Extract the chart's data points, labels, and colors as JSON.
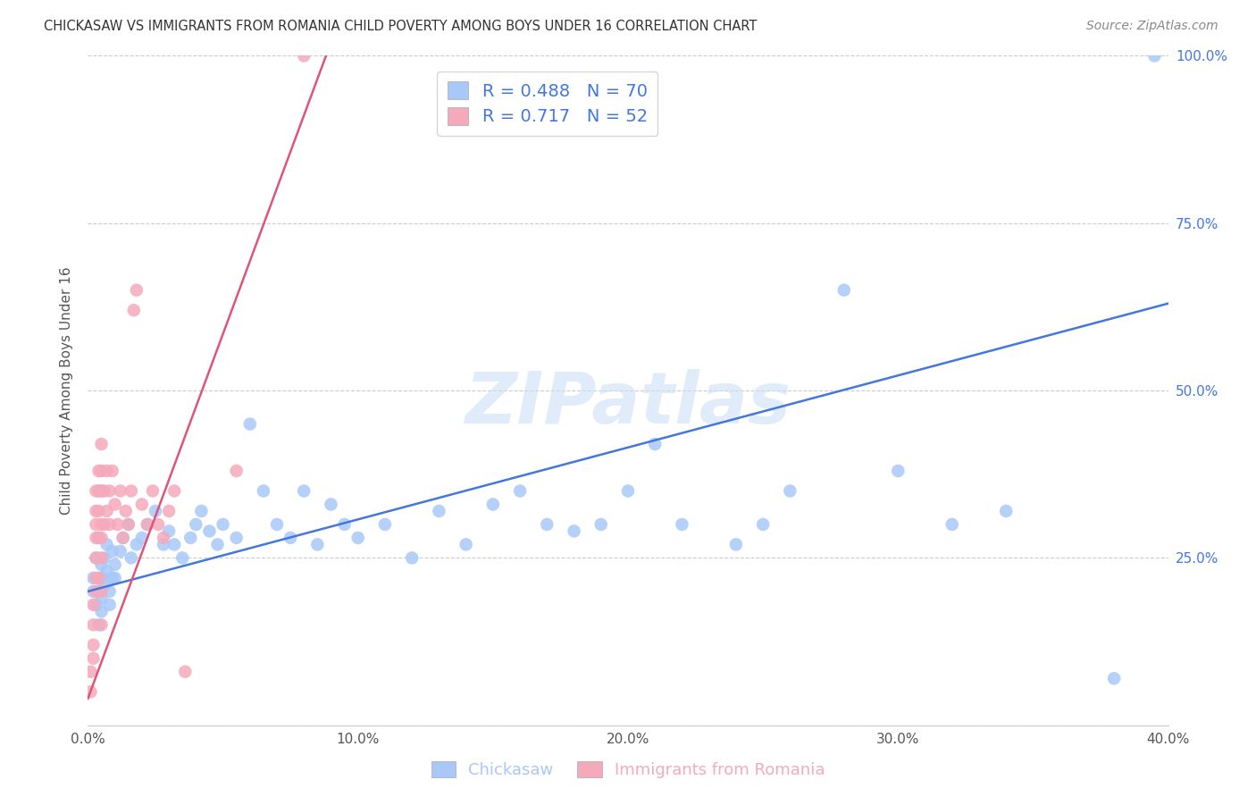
{
  "title": "CHICKASAW VS IMMIGRANTS FROM ROMANIA CHILD POVERTY AMONG BOYS UNDER 16 CORRELATION CHART",
  "source": "Source: ZipAtlas.com",
  "ylabel": "Child Poverty Among Boys Under 16",
  "xlim": [
    0.0,
    0.4
  ],
  "ylim": [
    0.0,
    1.0
  ],
  "xticks": [
    0.0,
    0.1,
    0.2,
    0.3,
    0.4
  ],
  "yticks": [
    0.0,
    0.25,
    0.5,
    0.75,
    1.0
  ],
  "xticklabels": [
    "0.0%",
    "10.0%",
    "20.0%",
    "30.0%",
    "40.0%"
  ],
  "yticklabels": [
    "",
    "25.0%",
    "50.0%",
    "75.0%",
    "100.0%"
  ],
  "legend1_label": "R = 0.488   N = 70",
  "legend2_label": "R = 0.717   N = 52",
  "blue_color": "#a8c8f8",
  "pink_color": "#f5aabb",
  "blue_line_color": "#4477dd",
  "pink_line_color": "#dd5577",
  "tick_color": "#4477dd",
  "watermark": "ZIPatlas",
  "chickasaw_x": [
    0.002,
    0.002,
    0.003,
    0.003,
    0.004,
    0.004,
    0.004,
    0.005,
    0.005,
    0.005,
    0.005,
    0.006,
    0.006,
    0.007,
    0.007,
    0.008,
    0.008,
    0.009,
    0.009,
    0.01,
    0.01,
    0.012,
    0.013,
    0.015,
    0.016,
    0.018,
    0.02,
    0.022,
    0.025,
    0.028,
    0.03,
    0.032,
    0.035,
    0.038,
    0.04,
    0.042,
    0.045,
    0.048,
    0.05,
    0.055,
    0.06,
    0.065,
    0.07,
    0.075,
    0.08,
    0.085,
    0.09,
    0.095,
    0.1,
    0.11,
    0.12,
    0.13,
    0.14,
    0.15,
    0.16,
    0.17,
    0.18,
    0.19,
    0.2,
    0.21,
    0.22,
    0.24,
    0.25,
    0.26,
    0.28,
    0.3,
    0.32,
    0.34,
    0.38,
    0.395
  ],
  "chickasaw_y": [
    0.2,
    0.22,
    0.18,
    0.25,
    0.15,
    0.2,
    0.28,
    0.22,
    0.17,
    0.24,
    0.19,
    0.21,
    0.25,
    0.27,
    0.23,
    0.2,
    0.18,
    0.22,
    0.26,
    0.24,
    0.22,
    0.26,
    0.28,
    0.3,
    0.25,
    0.27,
    0.28,
    0.3,
    0.32,
    0.27,
    0.29,
    0.27,
    0.25,
    0.28,
    0.3,
    0.32,
    0.29,
    0.27,
    0.3,
    0.28,
    0.45,
    0.35,
    0.3,
    0.28,
    0.35,
    0.27,
    0.33,
    0.3,
    0.28,
    0.3,
    0.25,
    0.32,
    0.27,
    0.33,
    0.35,
    0.3,
    0.29,
    0.3,
    0.35,
    0.42,
    0.3,
    0.27,
    0.3,
    0.35,
    0.65,
    0.38,
    0.3,
    0.32,
    0.07,
    1.0
  ],
  "romania_x": [
    0.001,
    0.001,
    0.002,
    0.002,
    0.002,
    0.002,
    0.003,
    0.003,
    0.003,
    0.003,
    0.003,
    0.003,
    0.003,
    0.004,
    0.004,
    0.004,
    0.004,
    0.004,
    0.005,
    0.005,
    0.005,
    0.005,
    0.005,
    0.005,
    0.005,
    0.005,
    0.006,
    0.006,
    0.007,
    0.007,
    0.008,
    0.008,
    0.009,
    0.01,
    0.011,
    0.012,
    0.013,
    0.014,
    0.015,
    0.016,
    0.017,
    0.018,
    0.02,
    0.022,
    0.024,
    0.026,
    0.028,
    0.03,
    0.032,
    0.036,
    0.055,
    0.08
  ],
  "romania_y": [
    0.05,
    0.08,
    0.1,
    0.12,
    0.15,
    0.18,
    0.2,
    0.22,
    0.25,
    0.28,
    0.3,
    0.32,
    0.35,
    0.38,
    0.22,
    0.28,
    0.32,
    0.35,
    0.15,
    0.2,
    0.25,
    0.28,
    0.3,
    0.35,
    0.38,
    0.42,
    0.3,
    0.35,
    0.32,
    0.38,
    0.3,
    0.35,
    0.38,
    0.33,
    0.3,
    0.35,
    0.28,
    0.32,
    0.3,
    0.35,
    0.62,
    0.65,
    0.33,
    0.3,
    0.35,
    0.3,
    0.28,
    0.32,
    0.35,
    0.08,
    0.38,
    1.0
  ],
  "blue_line_x": [
    0.0,
    0.4
  ],
  "blue_line_y": [
    0.2,
    0.63
  ],
  "pink_line_x": [
    0.0,
    0.09
  ],
  "pink_line_y": [
    0.04,
    1.02
  ]
}
